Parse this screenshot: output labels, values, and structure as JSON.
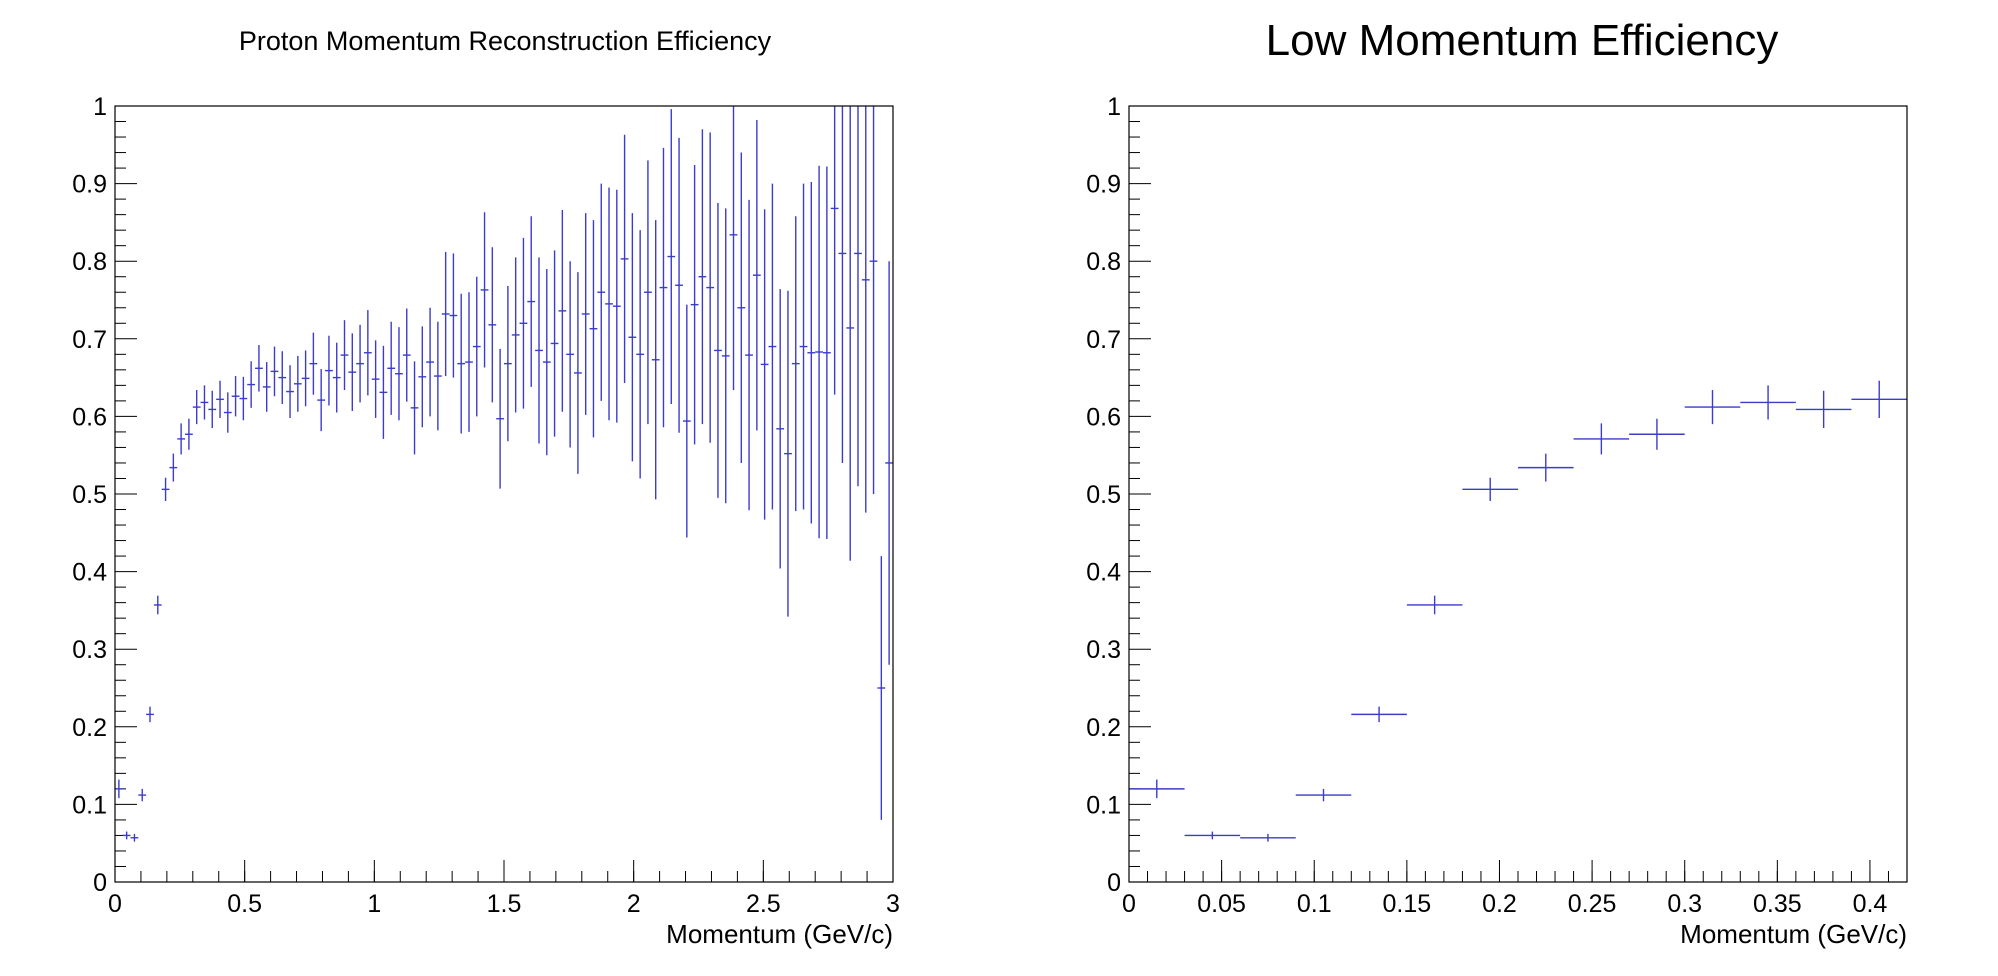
{
  "chart_data": [
    {
      "type": "scatter",
      "title": "Proton Momentum Reconstruction Efficiency",
      "xlabel": "Momentum (GeV/c)",
      "ylabel": "",
      "xlim": [
        0,
        3
      ],
      "ylim": [
        0,
        1
      ],
      "x_ticks": [
        "0",
        "0.5",
        "1",
        "1.5",
        "2",
        "2.5",
        "3"
      ],
      "y_ticks": [
        "0",
        "0.1",
        "0.2",
        "0.3",
        "0.4",
        "0.5",
        "0.6",
        "0.7",
        "0.8",
        "0.9",
        "1"
      ],
      "grid": false,
      "legend": "none",
      "color": "#3c3ccc",
      "bin_width": 0.03,
      "series": [
        {
          "x": [
            0.015,
            0.045,
            0.075,
            0.105,
            0.135,
            0.165,
            0.195,
            0.225,
            0.255,
            0.285,
            0.315,
            0.345,
            0.375,
            0.405,
            0.435,
            0.465,
            0.495,
            0.525,
            0.555,
            0.585,
            0.615,
            0.645,
            0.675,
            0.705,
            0.735,
            0.765,
            0.795,
            0.825,
            0.855,
            0.885,
            0.915,
            0.945,
            0.975,
            1.005,
            1.035,
            1.065,
            1.095,
            1.125,
            1.155,
            1.185,
            1.215,
            1.245,
            1.275,
            1.305,
            1.335,
            1.365,
            1.395,
            1.425,
            1.455,
            1.485,
            1.515,
            1.545,
            1.575,
            1.605,
            1.635,
            1.665,
            1.695,
            1.725,
            1.755,
            1.785,
            1.815,
            1.845,
            1.875,
            1.905,
            1.935,
            1.965,
            1.995,
            2.025,
            2.055,
            2.085,
            2.115,
            2.145,
            2.175,
            2.205,
            2.235,
            2.265,
            2.295,
            2.325,
            2.355,
            2.385,
            2.415,
            2.445,
            2.475,
            2.505,
            2.535,
            2.565,
            2.595,
            2.625,
            2.655,
            2.685,
            2.715,
            2.745,
            2.775,
            2.805,
            2.835,
            2.865,
            2.895,
            2.925,
            2.955,
            2.985
          ],
          "y": [
            0.12,
            0.06,
            0.057,
            0.112,
            0.216,
            0.357,
            0.506,
            0.534,
            0.571,
            0.577,
            0.612,
            0.618,
            0.609,
            0.622,
            0.605,
            0.626,
            0.623,
            0.641,
            0.662,
            0.638,
            0.658,
            0.65,
            0.632,
            0.642,
            0.649,
            0.668,
            0.621,
            0.659,
            0.65,
            0.679,
            0.657,
            0.668,
            0.682,
            0.648,
            0.631,
            0.662,
            0.655,
            0.679,
            0.611,
            0.651,
            0.67,
            0.652,
            0.732,
            0.73,
            0.668,
            0.67,
            0.69,
            0.763,
            0.718,
            0.597,
            0.668,
            0.705,
            0.72,
            0.748,
            0.685,
            0.67,
            0.694,
            0.736,
            0.68,
            0.656,
            0.732,
            0.713,
            0.76,
            0.745,
            0.742,
            0.803,
            0.702,
            0.68,
            0.76,
            0.673,
            0.766,
            0.806,
            0.769,
            0.594,
            0.744,
            0.78,
            0.766,
            0.685,
            0.678,
            0.834,
            0.74,
            0.679,
            0.782,
            0.667,
            0.69,
            0.584,
            0.552,
            0.668,
            0.69,
            0.682,
            0.683,
            0.682,
            0.868,
            0.81,
            0.714,
            0.81,
            0.776,
            0.8,
            0.25,
            0.54
          ],
          "err": [
            0.012,
            0.005,
            0.005,
            0.008,
            0.01,
            0.012,
            0.015,
            0.018,
            0.02,
            0.02,
            0.022,
            0.022,
            0.024,
            0.024,
            0.026,
            0.026,
            0.028,
            0.03,
            0.03,
            0.032,
            0.032,
            0.034,
            0.034,
            0.036,
            0.036,
            0.04,
            0.04,
            0.045,
            0.045,
            0.045,
            0.05,
            0.05,
            0.055,
            0.05,
            0.06,
            0.06,
            0.06,
            0.06,
            0.06,
            0.065,
            0.07,
            0.07,
            0.08,
            0.08,
            0.09,
            0.09,
            0.09,
            0.1,
            0.1,
            0.09,
            0.1,
            0.1,
            0.11,
            0.11,
            0.12,
            0.12,
            0.12,
            0.13,
            0.12,
            0.13,
            0.13,
            0.14,
            0.14,
            0.15,
            0.15,
            0.16,
            0.16,
            0.16,
            0.17,
            0.18,
            0.18,
            0.19,
            0.19,
            0.15,
            0.18,
            0.19,
            0.2,
            0.19,
            0.19,
            0.2,
            0.2,
            0.2,
            0.2,
            0.2,
            0.21,
            0.18,
            0.21,
            0.19,
            0.21,
            0.22,
            0.24,
            0.24,
            0.24,
            0.27,
            0.3,
            0.3,
            0.3,
            0.3,
            0.17,
            0.26
          ]
        }
      ]
    },
    {
      "type": "scatter",
      "title": "Low Momentum Efficiency",
      "xlabel": "Momentum (GeV/c)",
      "ylabel": "",
      "xlim": [
        0,
        0.42
      ],
      "ylim": [
        0,
        1
      ],
      "x_ticks": [
        "0",
        "0.05",
        "0.1",
        "0.15",
        "0.2",
        "0.25",
        "0.3",
        "0.35",
        "0.4"
      ],
      "y_ticks": [
        "0",
        "0.1",
        "0.2",
        "0.3",
        "0.4",
        "0.5",
        "0.6",
        "0.7",
        "0.8",
        "0.9",
        "1"
      ],
      "grid": false,
      "legend": "none",
      "color": "#3c3ccc",
      "bin_width": 0.03,
      "series": [
        {
          "x": [
            0.015,
            0.045,
            0.075,
            0.105,
            0.135,
            0.165,
            0.195,
            0.225,
            0.255,
            0.285,
            0.315,
            0.345,
            0.375,
            0.405
          ],
          "y": [
            0.12,
            0.06,
            0.057,
            0.112,
            0.216,
            0.357,
            0.506,
            0.534,
            0.571,
            0.577,
            0.612,
            0.618,
            0.609,
            0.622
          ],
          "err": [
            0.012,
            0.005,
            0.005,
            0.008,
            0.01,
            0.012,
            0.015,
            0.018,
            0.02,
            0.02,
            0.022,
            0.022,
            0.024,
            0.024
          ]
        }
      ]
    }
  ]
}
